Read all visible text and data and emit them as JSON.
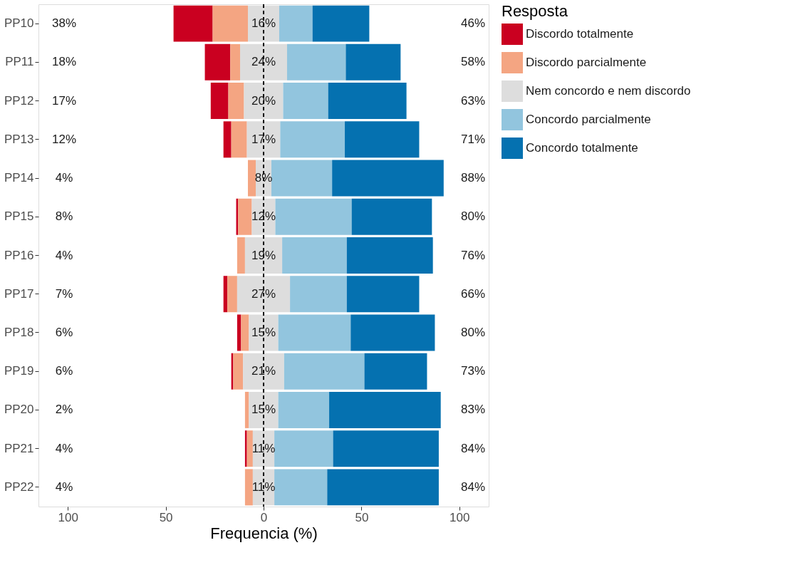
{
  "chart_data": {
    "type": "bar",
    "orientation": "horizontal",
    "xlabel": "Frequencia (%)",
    "legend_title": "Resposta",
    "legend": "right",
    "grid": false,
    "categories": [
      "PP10",
      "PP11",
      "PP12",
      "PP13",
      "PP14",
      "PP15",
      "PP16",
      "PP17",
      "PP18",
      "PP19",
      "PP20",
      "PP21",
      "PP22"
    ],
    "xlim": [
      -115,
      115
    ],
    "xticks": [
      {
        "value": -100,
        "label": "100"
      },
      {
        "value": -50,
        "label": "50"
      },
      0,
      50,
      100
    ],
    "series": [
      {
        "name": "Discordo totalmente",
        "color": "#ca0020",
        "values": [
          20,
          13,
          9,
          4,
          null,
          1,
          null,
          2,
          2,
          1,
          null,
          1,
          null
        ],
        "base": [
          -46,
          -30,
          -27,
          -20.5,
          null,
          -14,
          null,
          -20.5,
          -13.5,
          -16.5,
          null,
          -9.5,
          null
        ]
      },
      {
        "name": "Discordo parcialmente",
        "color": "#f4a582",
        "values": [
          18,
          5,
          8,
          8,
          4,
          7,
          4,
          5,
          4,
          5,
          2,
          3,
          4
        ],
        "base": [
          -26,
          -17,
          -18,
          -16.5,
          -8,
          -13,
          -13.5,
          -18.5,
          -11.5,
          -15.5,
          -9.5,
          -8.5,
          -9.5
        ]
      },
      {
        "name": "Nem concordo e nem discordo",
        "color": "#dddddd",
        "values": [
          16,
          24,
          20,
          17,
          8,
          12,
          19,
          27,
          15,
          21,
          15,
          11,
          11
        ],
        "value_labels": [
          "16%",
          "24%",
          "20%",
          "17%",
          "8%",
          "12%",
          "19%",
          "27%",
          "15%",
          "21%",
          "15%",
          "11%",
          "11%"
        ],
        "base": [
          -8,
          -12,
          -10,
          -8.5,
          -4,
          -6,
          -9.5,
          -13.5,
          -7.5,
          -10.5,
          -7.5,
          -5.5,
          -5.5
        ]
      },
      {
        "name": "Concordo parcialmente",
        "color": "#92c5de",
        "values": [
          17,
          30,
          23,
          33,
          31,
          39,
          33,
          29,
          37,
          41,
          26,
          30,
          27
        ],
        "base": [
          8,
          12,
          10,
          8.5,
          4,
          6,
          9.5,
          13.5,
          7.5,
          10.5,
          7.5,
          5.5,
          5.5
        ]
      },
      {
        "name": "Concordo totalmente",
        "color": "#0571b0",
        "values": [
          29,
          28,
          40,
          38,
          57,
          41,
          44,
          37,
          43,
          32,
          57,
          54,
          57
        ],
        "base": [
          25,
          42,
          33,
          41.5,
          35,
          45,
          42.5,
          42.5,
          44.5,
          51.5,
          33.5,
          35.5,
          32.5
        ]
      }
    ],
    "ref_lines": [
      {
        "axis": "x",
        "value": 0,
        "color": "#000000",
        "line_style": "dashed"
      }
    ],
    "annotations": [
      "38%",
      "46%",
      "18%",
      "58%",
      "17%",
      "63%",
      "12%",
      "71%",
      "4%",
      "88%",
      "8%",
      "80%",
      "4%",
      "76%",
      "7%",
      "66%",
      "6%",
      "80%",
      "6%",
      "73%",
      "2%",
      "83%",
      "4%",
      "84%",
      "4%",
      "84%"
    ]
  }
}
